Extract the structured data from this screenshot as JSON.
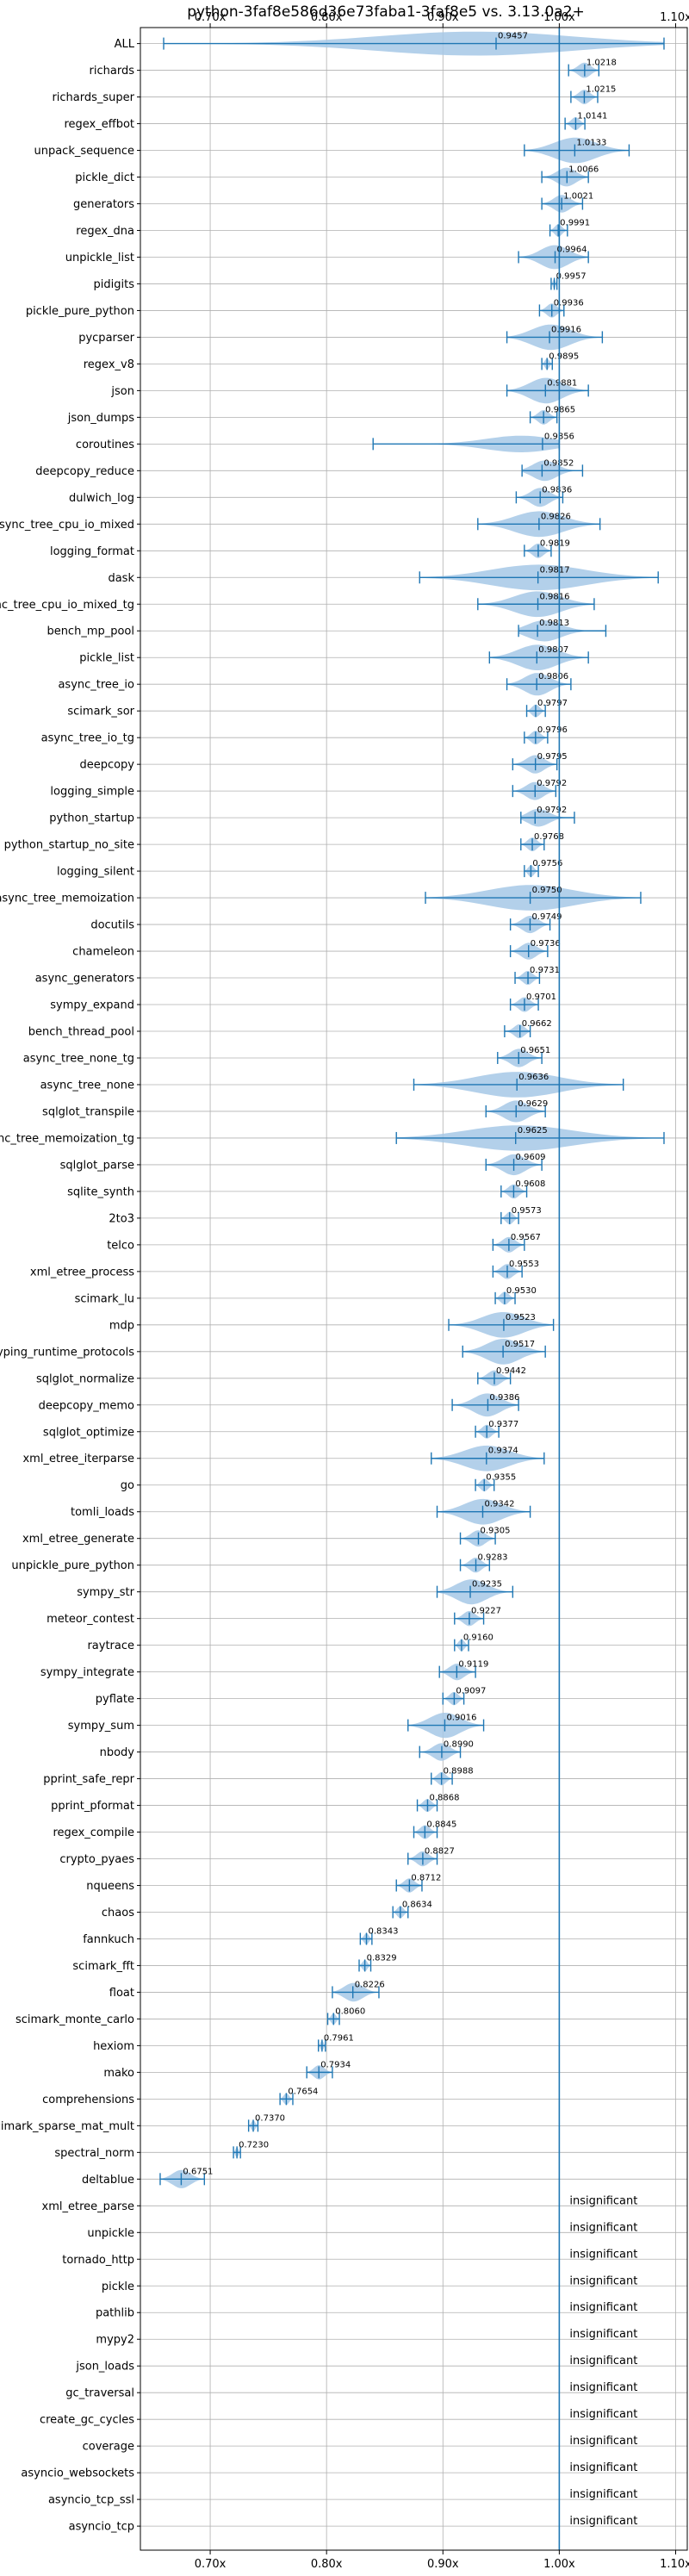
{
  "chart_data": {
    "type": "violin",
    "title": "python-3faf8e586d36e73faba1-3faf8e5 vs. 3.13.0a2+",
    "xlim": [
      0.64,
      1.11
    ],
    "xticks": [
      0.7,
      0.8,
      0.9,
      1.0,
      1.1
    ],
    "xtick_labels": [
      "0.70x",
      "0.80x",
      "0.90x",
      "1.00x",
      "1.10x"
    ],
    "reference_line": 1.0,
    "grid": true,
    "insignificant_label": "insignificant",
    "benchmarks": [
      {
        "name": "ALL",
        "value": 0.9457,
        "low": 0.66,
        "high": 1.09,
        "value_label": "0.9457"
      },
      {
        "name": "richards",
        "value": 1.0218,
        "low": 1.008,
        "high": 1.034,
        "value_label": "1.0218"
      },
      {
        "name": "richards_super",
        "value": 1.0215,
        "low": 1.01,
        "high": 1.033,
        "value_label": "1.0215"
      },
      {
        "name": "regex_effbot",
        "value": 1.0141,
        "low": 1.005,
        "high": 1.022,
        "value_label": "1.0141"
      },
      {
        "name": "unpack_sequence",
        "value": 1.0133,
        "low": 0.97,
        "high": 1.06,
        "value_label": "1.0133"
      },
      {
        "name": "pickle_dict",
        "value": 1.0066,
        "low": 0.985,
        "high": 1.025,
        "value_label": "1.0066"
      },
      {
        "name": "generators",
        "value": 1.0021,
        "low": 0.985,
        "high": 1.02,
        "value_label": "1.0021"
      },
      {
        "name": "regex_dna",
        "value": 0.9991,
        "low": 0.992,
        "high": 1.007,
        "value_label": "0.9991"
      },
      {
        "name": "unpickle_list",
        "value": 0.9964,
        "low": 0.965,
        "high": 1.025,
        "value_label": "0.9964"
      },
      {
        "name": "pidigits",
        "value": 0.9957,
        "low": 0.993,
        "high": 0.998,
        "value_label": "0.9957"
      },
      {
        "name": "pickle_pure_python",
        "value": 0.9936,
        "low": 0.983,
        "high": 1.004,
        "value_label": "0.9936"
      },
      {
        "name": "pycparser",
        "value": 0.9916,
        "low": 0.955,
        "high": 1.037,
        "value_label": "0.9916"
      },
      {
        "name": "regex_v8",
        "value": 0.9895,
        "low": 0.985,
        "high": 0.994,
        "value_label": "0.9895"
      },
      {
        "name": "json",
        "value": 0.9881,
        "low": 0.955,
        "high": 1.025,
        "value_label": "0.9881"
      },
      {
        "name": "json_dumps",
        "value": 0.9865,
        "low": 0.975,
        "high": 0.998,
        "value_label": "0.9865"
      },
      {
        "name": "coroutines",
        "value": 0.9856,
        "low": 0.84,
        "high": 1.0,
        "value_label": "0.9856"
      },
      {
        "name": "deepcopy_reduce",
        "value": 0.9852,
        "low": 0.968,
        "high": 1.02,
        "value_label": "0.9852"
      },
      {
        "name": "dulwich_log",
        "value": 0.9836,
        "low": 0.963,
        "high": 1.003,
        "value_label": "0.9836"
      },
      {
        "name": "async_tree_cpu_io_mixed",
        "value": 0.9826,
        "low": 0.93,
        "high": 1.035,
        "value_label": "0.9826"
      },
      {
        "name": "logging_format",
        "value": 0.9819,
        "low": 0.97,
        "high": 0.993,
        "value_label": "0.9819"
      },
      {
        "name": "dask",
        "value": 0.9817,
        "low": 0.88,
        "high": 1.085,
        "value_label": "0.9817"
      },
      {
        "name": "async_tree_cpu_io_mixed_tg",
        "value": 0.9816,
        "low": 0.93,
        "high": 1.03,
        "value_label": "0.9816"
      },
      {
        "name": "bench_mp_pool",
        "value": 0.9813,
        "low": 0.965,
        "high": 1.04,
        "value_label": "0.9813"
      },
      {
        "name": "pickle_list",
        "value": 0.9807,
        "low": 0.94,
        "high": 1.025,
        "value_label": "0.9807"
      },
      {
        "name": "async_tree_io",
        "value": 0.9806,
        "low": 0.955,
        "high": 1.01,
        "value_label": "0.9806"
      },
      {
        "name": "scimark_sor",
        "value": 0.9797,
        "low": 0.972,
        "high": 0.988,
        "value_label": "0.9797"
      },
      {
        "name": "async_tree_io_tg",
        "value": 0.9796,
        "low": 0.97,
        "high": 0.99,
        "value_label": "0.9796"
      },
      {
        "name": "deepcopy",
        "value": 0.9795,
        "low": 0.96,
        "high": 0.998,
        "value_label": "0.9795"
      },
      {
        "name": "logging_simple",
        "value": 0.9792,
        "low": 0.96,
        "high": 0.997,
        "value_label": "0.9792"
      },
      {
        "name": "python_startup",
        "value": 0.9792,
        "low": 0.967,
        "high": 1.013,
        "value_label": "0.9792"
      },
      {
        "name": "python_startup_no_site",
        "value": 0.9768,
        "low": 0.967,
        "high": 0.987,
        "value_label": "0.9768"
      },
      {
        "name": "logging_silent",
        "value": 0.9756,
        "low": 0.97,
        "high": 0.982,
        "value_label": "0.9756"
      },
      {
        "name": "async_tree_memoization",
        "value": 0.975,
        "low": 0.885,
        "high": 1.07,
        "value_label": "0.9750"
      },
      {
        "name": "docutils",
        "value": 0.9749,
        "low": 0.958,
        "high": 0.992,
        "value_label": "0.9749"
      },
      {
        "name": "chameleon",
        "value": 0.9736,
        "low": 0.958,
        "high": 0.99,
        "value_label": "0.9736"
      },
      {
        "name": "async_generators",
        "value": 0.9731,
        "low": 0.962,
        "high": 0.983,
        "value_label": "0.9731"
      },
      {
        "name": "sympy_expand",
        "value": 0.9701,
        "low": 0.958,
        "high": 0.982,
        "value_label": "0.9701"
      },
      {
        "name": "bench_thread_pool",
        "value": 0.9662,
        "low": 0.953,
        "high": 0.975,
        "value_label": "0.9662"
      },
      {
        "name": "async_tree_none_tg",
        "value": 0.9651,
        "low": 0.947,
        "high": 0.985,
        "value_label": "0.9651"
      },
      {
        "name": "async_tree_none",
        "value": 0.9636,
        "low": 0.875,
        "high": 1.055,
        "value_label": "0.9636"
      },
      {
        "name": "sqlglot_transpile",
        "value": 0.9629,
        "low": 0.937,
        "high": 0.988,
        "value_label": "0.9629"
      },
      {
        "name": "async_tree_memoization_tg",
        "value": 0.9625,
        "low": 0.86,
        "high": 1.09,
        "value_label": "0.9625"
      },
      {
        "name": "sqlglot_parse",
        "value": 0.9609,
        "low": 0.937,
        "high": 0.985,
        "value_label": "0.9609"
      },
      {
        "name": "sqlite_synth",
        "value": 0.9608,
        "low": 0.95,
        "high": 0.972,
        "value_label": "0.9608"
      },
      {
        "name": "2to3",
        "value": 0.9573,
        "low": 0.95,
        "high": 0.965,
        "value_label": "0.9573"
      },
      {
        "name": "telco",
        "value": 0.9567,
        "low": 0.943,
        "high": 0.97,
        "value_label": "0.9567"
      },
      {
        "name": "xml_etree_process",
        "value": 0.9553,
        "low": 0.943,
        "high": 0.968,
        "value_label": "0.9553"
      },
      {
        "name": "scimark_lu",
        "value": 0.953,
        "low": 0.945,
        "high": 0.962,
        "value_label": "0.9530"
      },
      {
        "name": "mdp",
        "value": 0.9523,
        "low": 0.905,
        "high": 0.995,
        "value_label": "0.9523"
      },
      {
        "name": "typing_runtime_protocols",
        "value": 0.9517,
        "low": 0.917,
        "high": 0.988,
        "value_label": "0.9517"
      },
      {
        "name": "sqlglot_normalize",
        "value": 0.9442,
        "low": 0.93,
        "high": 0.958,
        "value_label": "0.9442"
      },
      {
        "name": "deepcopy_memo",
        "value": 0.9386,
        "low": 0.908,
        "high": 0.965,
        "value_label": "0.9386"
      },
      {
        "name": "sqlglot_optimize",
        "value": 0.9377,
        "low": 0.928,
        "high": 0.948,
        "value_label": "0.9377"
      },
      {
        "name": "xml_etree_iterparse",
        "value": 0.9374,
        "low": 0.89,
        "high": 0.987,
        "value_label": "0.9374"
      },
      {
        "name": "go",
        "value": 0.9355,
        "low": 0.928,
        "high": 0.944,
        "value_label": "0.9355"
      },
      {
        "name": "tomli_loads",
        "value": 0.9342,
        "low": 0.895,
        "high": 0.975,
        "value_label": "0.9342"
      },
      {
        "name": "xml_etree_generate",
        "value": 0.9305,
        "low": 0.915,
        "high": 0.945,
        "value_label": "0.9305"
      },
      {
        "name": "unpickle_pure_python",
        "value": 0.9283,
        "low": 0.915,
        "high": 0.94,
        "value_label": "0.9283"
      },
      {
        "name": "sympy_str",
        "value": 0.9235,
        "low": 0.895,
        "high": 0.96,
        "value_label": "0.9235"
      },
      {
        "name": "meteor_contest",
        "value": 0.9227,
        "low": 0.91,
        "high": 0.935,
        "value_label": "0.9227"
      },
      {
        "name": "raytrace",
        "value": 0.916,
        "low": 0.91,
        "high": 0.922,
        "value_label": "0.9160"
      },
      {
        "name": "sympy_integrate",
        "value": 0.9119,
        "low": 0.897,
        "high": 0.928,
        "value_label": "0.9119"
      },
      {
        "name": "pyflate",
        "value": 0.9097,
        "low": 0.9,
        "high": 0.918,
        "value_label": "0.9097"
      },
      {
        "name": "sympy_sum",
        "value": 0.9016,
        "low": 0.87,
        "high": 0.935,
        "value_label": "0.9016"
      },
      {
        "name": "nbody",
        "value": 0.899,
        "low": 0.88,
        "high": 0.915,
        "value_label": "0.8990"
      },
      {
        "name": "pprint_safe_repr",
        "value": 0.8988,
        "low": 0.89,
        "high": 0.908,
        "value_label": "0.8988"
      },
      {
        "name": "pprint_pformat",
        "value": 0.8868,
        "low": 0.878,
        "high": 0.895,
        "value_label": "0.8868"
      },
      {
        "name": "regex_compile",
        "value": 0.8845,
        "low": 0.875,
        "high": 0.895,
        "value_label": "0.8845"
      },
      {
        "name": "crypto_pyaes",
        "value": 0.8827,
        "low": 0.87,
        "high": 0.895,
        "value_label": "0.8827"
      },
      {
        "name": "nqueens",
        "value": 0.8712,
        "low": 0.86,
        "high": 0.882,
        "value_label": "0.8712"
      },
      {
        "name": "chaos",
        "value": 0.8634,
        "low": 0.857,
        "high": 0.87,
        "value_label": "0.8634"
      },
      {
        "name": "fannkuch",
        "value": 0.8343,
        "low": 0.829,
        "high": 0.839,
        "value_label": "0.8343"
      },
      {
        "name": "scimark_fft",
        "value": 0.8329,
        "low": 0.828,
        "high": 0.838,
        "value_label": "0.8329"
      },
      {
        "name": "float",
        "value": 0.8226,
        "low": 0.805,
        "high": 0.845,
        "value_label": "0.8226"
      },
      {
        "name": "scimark_monte_carlo",
        "value": 0.806,
        "low": 0.801,
        "high": 0.811,
        "value_label": "0.8060"
      },
      {
        "name": "hexiom",
        "value": 0.7961,
        "low": 0.793,
        "high": 0.799,
        "value_label": "0.7961"
      },
      {
        "name": "mako",
        "value": 0.7934,
        "low": 0.783,
        "high": 0.805,
        "value_label": "0.7934"
      },
      {
        "name": "comprehensions",
        "value": 0.7654,
        "low": 0.76,
        "high": 0.771,
        "value_label": "0.7654"
      },
      {
        "name": "scimark_sparse_mat_mult",
        "value": 0.737,
        "low": 0.733,
        "high": 0.741,
        "value_label": "0.7370"
      },
      {
        "name": "spectral_norm",
        "value": 0.723,
        "low": 0.72,
        "high": 0.726,
        "value_label": "0.7230"
      },
      {
        "name": "deltablue",
        "value": 0.6751,
        "low": 0.657,
        "high": 0.695,
        "value_label": "0.6751"
      },
      {
        "name": "xml_etree_parse",
        "insignificant": true
      },
      {
        "name": "unpickle",
        "insignificant": true
      },
      {
        "name": "tornado_http",
        "insignificant": true
      },
      {
        "name": "pickle",
        "insignificant": true
      },
      {
        "name": "pathlib",
        "insignificant": true
      },
      {
        "name": "mypy2",
        "insignificant": true
      },
      {
        "name": "json_loads",
        "insignificant": true
      },
      {
        "name": "gc_traversal",
        "insignificant": true
      },
      {
        "name": "create_gc_cycles",
        "insignificant": true
      },
      {
        "name": "coverage",
        "insignificant": true
      },
      {
        "name": "asyncio_websockets",
        "insignificant": true
      },
      {
        "name": "asyncio_tcp_ssl",
        "insignificant": true
      },
      {
        "name": "asyncio_tcp",
        "insignificant": true
      }
    ],
    "colors": {
      "line": "#1f77b4",
      "violin": "#a6c8e6",
      "grid": "#b0b0b0",
      "axis": "#000000"
    }
  }
}
